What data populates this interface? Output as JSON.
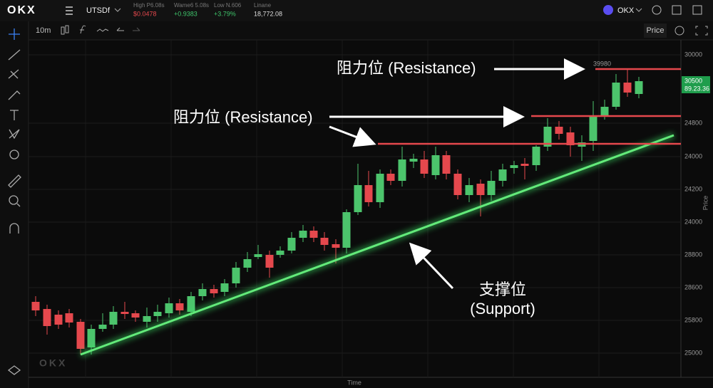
{
  "header": {
    "logo": "OKX",
    "pair": "UTSDf",
    "stats": [
      {
        "label": "High P6.08s",
        "value": "$0.0478"
      },
      {
        "label": "Wame6 5.08s",
        "value": "+0.9383"
      },
      {
        "label": "Low N.606",
        "value": "+3.79%"
      },
      {
        "label": "Linane",
        "value": "18,772.08"
      }
    ],
    "exchange": "OKX"
  },
  "toolbar": {
    "interval": "10m",
    "price": "Price"
  },
  "axis": {
    "labels": [
      "30000",
      "24800",
      "24000",
      "24200",
      "24000",
      "28800",
      "28600",
      "25800",
      "25000"
    ],
    "badge": {
      "price": "30500",
      "time": "89.23.36"
    },
    "title": "Price",
    "x_title": "Time"
  },
  "annotations": {
    "resistance_top": "阻力位 (Resistance)",
    "resistance_mid": "阻力位 (Resistance)",
    "support_line1": "支撑位",
    "support_line2": "(Support)",
    "level": "39980"
  },
  "watermark": "OKX"
}
